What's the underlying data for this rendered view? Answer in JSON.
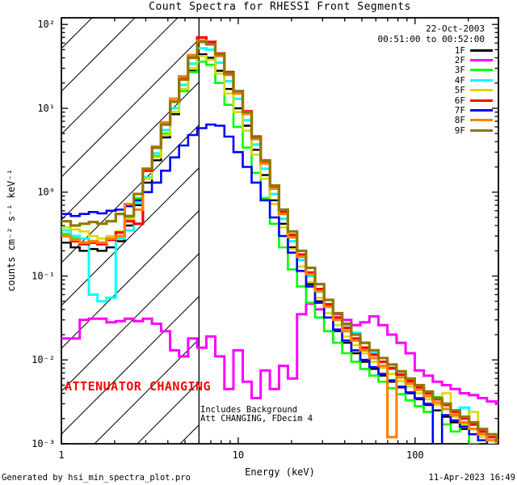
{
  "title": "Count Spectra for RHESSI Front Segments",
  "header": {
    "date": "22-Oct-2003",
    "time_range": "00:51:00 to 00:52:00"
  },
  "annotations": {
    "attenuator": "ATTENUATOR CHANGING",
    "note_line1": "Includes Background",
    "note_line2": "Att CHANGING, FDecim 4"
  },
  "footer": {
    "left": "Generated by hsi_min_spectra_plot.pro",
    "right": "11-Apr-2023 16:49"
  },
  "colors": {
    "annotation_red": "#ff0000",
    "axis": "#000000",
    "background": "#ffffff"
  },
  "chart_data": {
    "type": "line",
    "title": "Count Spectra for RHESSI Front Segments",
    "xlabel": "Energy (keV)",
    "ylabel": "counts cm⁻² s⁻¹ keV⁻¹",
    "x_scale": "log",
    "y_scale": "log",
    "xlim": [
      1,
      296
    ],
    "ylim": [
      0.001,
      120
    ],
    "grid": false,
    "legend_position": "top-right-inside",
    "vline_x": 6,
    "hatch_region": {
      "x_start": 1,
      "x_end": 6
    },
    "x_major_ticks": [
      {
        "value": 1,
        "label": "1"
      },
      {
        "value": 10,
        "label": "10"
      },
      {
        "value": 100,
        "label": "100"
      }
    ],
    "y_major_ticks": [
      {
        "value": 100,
        "label": "10²"
      },
      {
        "value": 10,
        "label": "10¹"
      },
      {
        "value": 1,
        "label": "10⁰"
      },
      {
        "value": 0.1,
        "label": "10⁻¹"
      },
      {
        "value": 0.01,
        "label": "10⁻²"
      },
      {
        "value": 0.001,
        "label": "10⁻³"
      }
    ],
    "energies": [
      1.0,
      1.13,
      1.27,
      1.43,
      1.6,
      1.8,
      2.03,
      2.28,
      2.57,
      2.89,
      3.25,
      3.66,
      4.12,
      4.63,
      5.21,
      5.86,
      6.6,
      7.42,
      8.35,
      9.4,
      10.6,
      11.9,
      13.4,
      15.1,
      17.0,
      19.1,
      21.5,
      24.2,
      27.2,
      30.6,
      34.4,
      38.7,
      43.6,
      49.0,
      55.2,
      62.1,
      69.8,
      78.6,
      88.4,
      99.5,
      112,
      126,
      142,
      159,
      179,
      202,
      227,
      255,
      287
    ],
    "series": [
      {
        "name": "1F",
        "color": "#000000",
        "values": [
          0.25,
          0.22,
          0.2,
          0.21,
          0.2,
          0.22,
          0.26,
          0.4,
          0.7,
          1.3,
          2.4,
          4.5,
          8.5,
          16,
          28,
          44,
          40,
          28,
          17,
          10,
          6.2,
          3.2,
          1.6,
          0.8,
          0.42,
          0.22,
          0.13,
          0.08,
          0.05,
          0.032,
          0.022,
          0.016,
          0.012,
          0.0095,
          0.0078,
          0.0065,
          0.0055,
          0.0047,
          0.004,
          0.0034,
          0.0029,
          0.0025,
          0.0021,
          0.0018,
          0.0015,
          0.0013,
          0.0011,
          0.00095,
          0.0008
        ]
      },
      {
        "name": "2F",
        "color": "#ff00ff",
        "values": [
          0.018,
          0.018,
          0.03,
          0.031,
          0.031,
          0.028,
          0.029,
          0.031,
          0.029,
          0.031,
          0.027,
          0.022,
          0.013,
          0.011,
          0.018,
          0.014,
          0.019,
          0.011,
          0.0045,
          0.013,
          0.0055,
          0.0035,
          0.0075,
          0.0045,
          0.0085,
          0.006,
          0.035,
          0.047,
          0.04,
          0.044,
          0.035,
          0.03,
          0.026,
          0.028,
          0.033,
          0.026,
          0.02,
          0.016,
          0.012,
          0.0075,
          0.0065,
          0.0055,
          0.005,
          0.0045,
          0.004,
          0.0038,
          0.0035,
          0.0032,
          0.003
        ]
      },
      {
        "name": "3F",
        "color": "#00ff00",
        "values": [
          0.32,
          0.28,
          0.25,
          0.26,
          0.24,
          0.27,
          0.33,
          0.5,
          0.85,
          1.5,
          2.7,
          5.0,
          9.0,
          16,
          27,
          36,
          33,
          20,
          11,
          6.0,
          3.4,
          1.7,
          0.85,
          0.42,
          0.22,
          0.12,
          0.075,
          0.048,
          0.032,
          0.022,
          0.016,
          0.012,
          0.0095,
          0.0078,
          0.0065,
          0.0055,
          0.0046,
          0.0039,
          0.0033,
          0.0028,
          0.0024,
          0.0036,
          0.0017,
          0.0014,
          0.0021,
          0.001,
          0.00085,
          0.00075,
          0.0007
        ]
      },
      {
        "name": "4F",
        "color": "#00ffff",
        "values": [
          0.35,
          0.3,
          0.28,
          0.06,
          0.05,
          0.055,
          0.28,
          0.35,
          0.75,
          1.5,
          2.9,
          5.5,
          10,
          19,
          34,
          52,
          50,
          35,
          21,
          13,
          7.2,
          3.7,
          1.9,
          0.95,
          0.48,
          0.26,
          0.155,
          0.1,
          0.065,
          0.044,
          0.032,
          0.026,
          0.021,
          0.016,
          0.012,
          0.0095,
          0.0078,
          0.0064,
          0.0053,
          0.0044,
          0.0037,
          0.0031,
          0.0026,
          0.0022,
          0.0027,
          0.0015,
          0.0013,
          0.0011,
          0.0009
        ]
      },
      {
        "name": "5F",
        "color": "#d9d900",
        "values": [
          0.38,
          0.36,
          0.34,
          0.3,
          0.28,
          0.3,
          0.34,
          0.48,
          0.8,
          1.45,
          2.6,
          4.8,
          9.0,
          17,
          30,
          42,
          38,
          26,
          15,
          9.0,
          5.4,
          2.8,
          1.45,
          0.72,
          0.38,
          0.21,
          0.13,
          0.085,
          0.055,
          0.036,
          0.026,
          0.019,
          0.015,
          0.012,
          0.0095,
          0.008,
          0.0068,
          0.0056,
          0.0048,
          0.004,
          0.0034,
          0.0029,
          0.004,
          0.0021,
          0.0017,
          0.0024,
          0.0012,
          0.001,
          0.00085
        ]
      },
      {
        "name": "6F",
        "color": "#ff0000",
        "values": [
          0.3,
          0.26,
          0.24,
          0.25,
          0.24,
          0.27,
          0.33,
          0.45,
          0.42,
          1.8,
          3.4,
          6.5,
          12,
          23,
          42,
          70,
          62,
          45,
          27,
          16,
          9.2,
          4.6,
          2.3,
          1.15,
          0.58,
          0.31,
          0.18,
          0.11,
          0.07,
          0.046,
          0.032,
          0.024,
          0.018,
          0.014,
          0.0115,
          0.0095,
          0.008,
          0.0067,
          0.0056,
          0.0047,
          0.004,
          0.0034,
          0.0029,
          0.0024,
          0.002,
          0.0017,
          0.0014,
          0.0012,
          0.001
        ]
      },
      {
        "name": "7F",
        "color": "#0000ff",
        "values": [
          0.55,
          0.52,
          0.55,
          0.58,
          0.56,
          0.6,
          0.62,
          0.68,
          0.8,
          1.0,
          1.3,
          1.8,
          2.6,
          3.6,
          4.8,
          5.8,
          6.4,
          6.2,
          4.6,
          3.0,
          2.0,
          1.3,
          0.8,
          0.5,
          0.3,
          0.19,
          0.115,
          0.075,
          0.048,
          0.032,
          0.023,
          0.017,
          0.013,
          0.01,
          0.0082,
          0.0068,
          0.0057,
          0.0048,
          0.0041,
          0.0035,
          0.003,
          0.0008,
          0.0022,
          0.0019,
          0.0016,
          0.0013,
          0.0011,
          0.0009,
          0.0008
        ]
      },
      {
        "name": "8F",
        "color": "#ff8000",
        "values": [
          0.3,
          0.27,
          0.25,
          0.26,
          0.25,
          0.28,
          0.3,
          0.72,
          0.62,
          1.9,
          3.5,
          6.8,
          13,
          24,
          43,
          64,
          58,
          42,
          25,
          15,
          8.6,
          4.3,
          2.2,
          1.1,
          0.55,
          0.29,
          0.17,
          0.105,
          0.066,
          0.043,
          0.03,
          0.022,
          0.017,
          0.013,
          0.0105,
          0.0085,
          0.0012,
          0.0062,
          0.0052,
          0.0044,
          0.0037,
          0.0031,
          0.0026,
          0.0022,
          0.0018,
          0.0015,
          0.0013,
          0.0011,
          0.0009
        ]
      },
      {
        "name": "9F",
        "color": "#8f7800",
        "values": [
          0.45,
          0.4,
          0.42,
          0.44,
          0.42,
          0.45,
          0.55,
          0.52,
          0.95,
          1.9,
          3.4,
          6.4,
          12,
          22,
          40,
          62,
          58,
          44,
          26,
          16,
          9.0,
          4.5,
          2.4,
          1.2,
          0.62,
          0.34,
          0.2,
          0.125,
          0.08,
          0.052,
          0.036,
          0.027,
          0.02,
          0.016,
          0.013,
          0.0105,
          0.0088,
          0.0073,
          0.006,
          0.005,
          0.0042,
          0.0035,
          0.003,
          0.0025,
          0.0021,
          0.0018,
          0.0015,
          0.0013,
          0.0011
        ]
      }
    ]
  }
}
